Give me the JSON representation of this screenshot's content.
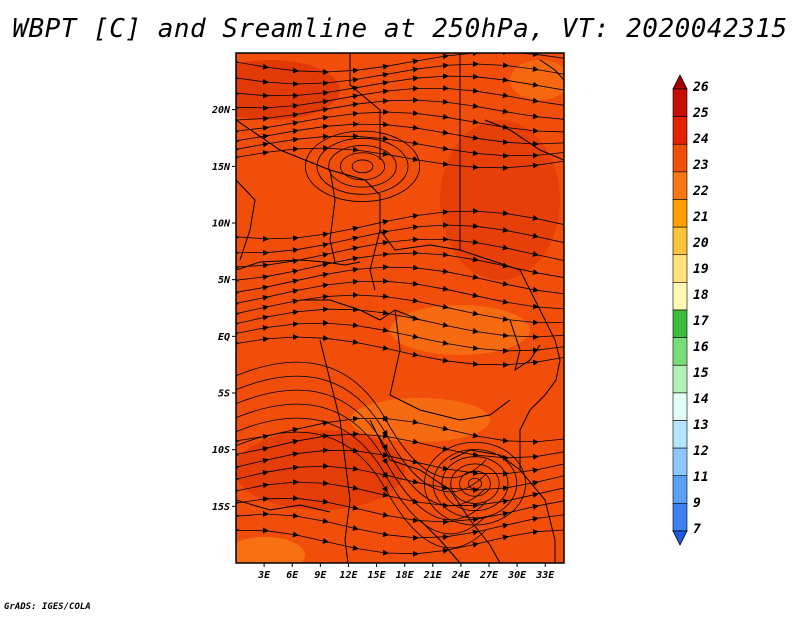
{
  "title": "WBPT [C] and Sreamline at 250hPa, VT: 2020042315",
  "credit": "GrADS: IGES/COLA",
  "map": {
    "lon_range": [
      0,
      35
    ],
    "lat_range": [
      -20,
      25
    ],
    "x_ticks": [
      {
        "lon": 3,
        "label": "3E"
      },
      {
        "lon": 6,
        "label": "6E"
      },
      {
        "lon": 9,
        "label": "9E"
      },
      {
        "lon": 12,
        "label": "12E"
      },
      {
        "lon": 15,
        "label": "15E"
      },
      {
        "lon": 18,
        "label": "18E"
      },
      {
        "lon": 21,
        "label": "21E"
      },
      {
        "lon": 24,
        "label": "24E"
      },
      {
        "lon": 27,
        "label": "27E"
      },
      {
        "lon": 30,
        "label": "30E"
      },
      {
        "lon": 33,
        "label": "33E"
      }
    ],
    "y_ticks": [
      {
        "lat": 20,
        "label": "20N"
      },
      {
        "lat": 15,
        "label": "15N"
      },
      {
        "lat": 10,
        "label": "10N"
      },
      {
        "lat": 5,
        "label": "5N"
      },
      {
        "lat": 0,
        "label": "EQ"
      },
      {
        "lat": -5,
        "label": "5S"
      },
      {
        "lat": -10,
        "label": "10S"
      },
      {
        "lat": -15,
        "label": "15S"
      }
    ],
    "fill_colors": {
      "base": "#f04e0a",
      "dark": "#dc3206",
      "light": "#f87814",
      "boundary": "#000000"
    }
  },
  "colorbar": {
    "levels": [
      {
        "label": "26",
        "color": "#a80000"
      },
      {
        "label": "25",
        "color": "#c80e00"
      },
      {
        "label": "24",
        "color": "#e22200"
      },
      {
        "label": "23",
        "color": "#f04e0a"
      },
      {
        "label": "22",
        "color": "#f87814"
      },
      {
        "label": "21",
        "color": "#ffa000"
      },
      {
        "label": "20",
        "color": "#ffc43c"
      },
      {
        "label": "19",
        "color": "#ffe27a"
      },
      {
        "label": "18",
        "color": "#fffab4"
      },
      {
        "label": "17",
        "color": "#3cbe3c"
      },
      {
        "label": "16",
        "color": "#78dc78"
      },
      {
        "label": "15",
        "color": "#b4f0b4"
      },
      {
        "label": "14",
        "color": "#e1fff5"
      },
      {
        "label": "13",
        "color": "#b4e6ff"
      },
      {
        "label": "12",
        "color": "#8cc8ff"
      },
      {
        "label": "11",
        "color": "#5aa0f5"
      },
      {
        "label": "9",
        "color": "#3c82f0"
      },
      {
        "label": "7",
        "color": "#1e5ae6"
      }
    ]
  }
}
